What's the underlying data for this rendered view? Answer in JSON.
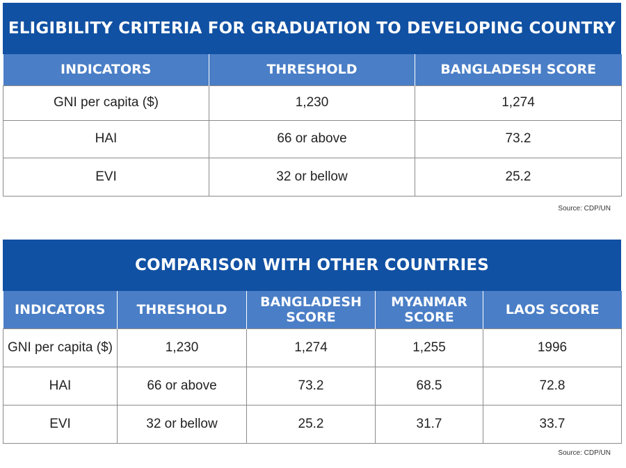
{
  "table1": {
    "title": "ELIGIBILITY CRITERIA FOR GRADUATION TO DEVELOPING COUNTRY",
    "headers": [
      "INDICATORS",
      "THRESHOLD",
      "BANGLADESH SCORE"
    ],
    "rows": [
      [
        "GNI per capita ($)",
        "1,230",
        "1,274"
      ],
      [
        "HAI",
        "66 or above",
        "73.2"
      ],
      [
        "EVI",
        "32 or bellow",
        "25.2"
      ]
    ],
    "source": "Source: CDP/UN"
  },
  "table2": {
    "title": "COMPARISON WITH OTHER COUNTRIES",
    "headers": [
      "INDICATORS",
      "THRESHOLD",
      "BANGLADESH SCORE",
      "MYANMAR SCORE",
      "LAOS SCORE"
    ],
    "rows": [
      [
        "GNI per capita ($)",
        "1,230",
        "1,274",
        "1,255",
        "1996"
      ],
      [
        "HAI",
        "66 or above",
        "73.2",
        "68.5",
        "72.8"
      ],
      [
        "EVI",
        "32 or bellow",
        "25.2",
        "31.7",
        "33.7"
      ]
    ],
    "source": "Source: CDP/UN"
  },
  "colors": {
    "title_bar": "#1151a3",
    "header_bar": "#4a7ec6",
    "cell_border": "#8a8a8a"
  }
}
